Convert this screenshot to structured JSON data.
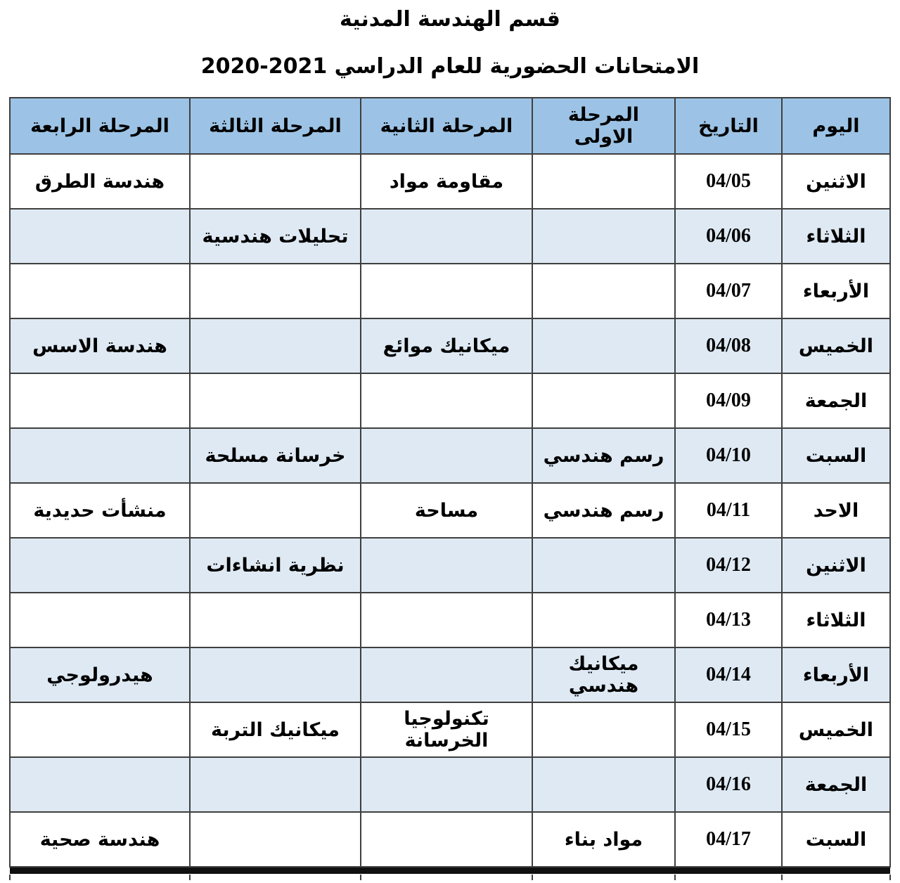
{
  "titles": {
    "department": "قسم الهندسة المدنية",
    "exams_line": "الامتحانات الحضورية للعام الدراسي 2021-2020"
  },
  "colors": {
    "header_bg": "#9CC3E5",
    "band_bg": "#DEE9F3",
    "border": "#3f3f3f"
  },
  "table": {
    "headers": [
      {
        "key": "day",
        "label": "اليوم"
      },
      {
        "key": "date",
        "label": "التاريخ"
      },
      {
        "key": "stage-1",
        "label": "المرحلة الاولى"
      },
      {
        "key": "stage-2",
        "label": "المرحلة الثانية"
      },
      {
        "key": "stage-3",
        "label": "المرحلة الثالثة"
      },
      {
        "key": "stage-4",
        "label": "المرحلة الرابعة"
      }
    ],
    "rows": [
      {
        "cells": [
          "الاثنين",
          "04/05",
          "",
          "مقاومة مواد",
          "",
          "هندسة الطرق"
        ]
      },
      {
        "cells": [
          "الثلاثاء",
          "04/06",
          "",
          "",
          "تحليلات هندسية",
          ""
        ]
      },
      {
        "cells": [
          "الأربعاء",
          "04/07",
          "",
          "",
          "",
          ""
        ]
      },
      {
        "cells": [
          "الخميس",
          "04/08",
          "",
          "ميكانيك موائع",
          "",
          "هندسة الاسس"
        ]
      },
      {
        "cells": [
          "الجمعة",
          "04/09",
          "",
          "",
          "",
          ""
        ]
      },
      {
        "cells": [
          "السبت",
          "04/10",
          "رسم هندسي",
          "",
          "خرسانة مسلحة",
          ""
        ]
      },
      {
        "cells": [
          "الاحد",
          "04/11",
          "رسم هندسي",
          "مساحة",
          "",
          "منشأت حديدية"
        ]
      },
      {
        "cells": [
          "الاثنين",
          "04/12",
          "",
          "",
          "نظرية انشاءات",
          ""
        ]
      },
      {
        "cells": [
          "الثلاثاء",
          "04/13",
          "",
          "",
          "",
          ""
        ]
      },
      {
        "cells": [
          "الأربعاء",
          "04/14",
          "ميكانيك هندسي",
          "",
          "",
          "هيدرولوجي"
        ]
      },
      {
        "cells": [
          "الخميس",
          "04/15",
          "",
          "تكنولوجيا الخرسانة",
          "ميكانيك التربة",
          ""
        ]
      },
      {
        "cells": [
          "الجمعة",
          "04/16",
          "",
          "",
          "",
          ""
        ]
      },
      {
        "cells": [
          "السبت",
          "04/17",
          "مواد بناء",
          "",
          "",
          "هندسة صحية"
        ]
      }
    ]
  }
}
